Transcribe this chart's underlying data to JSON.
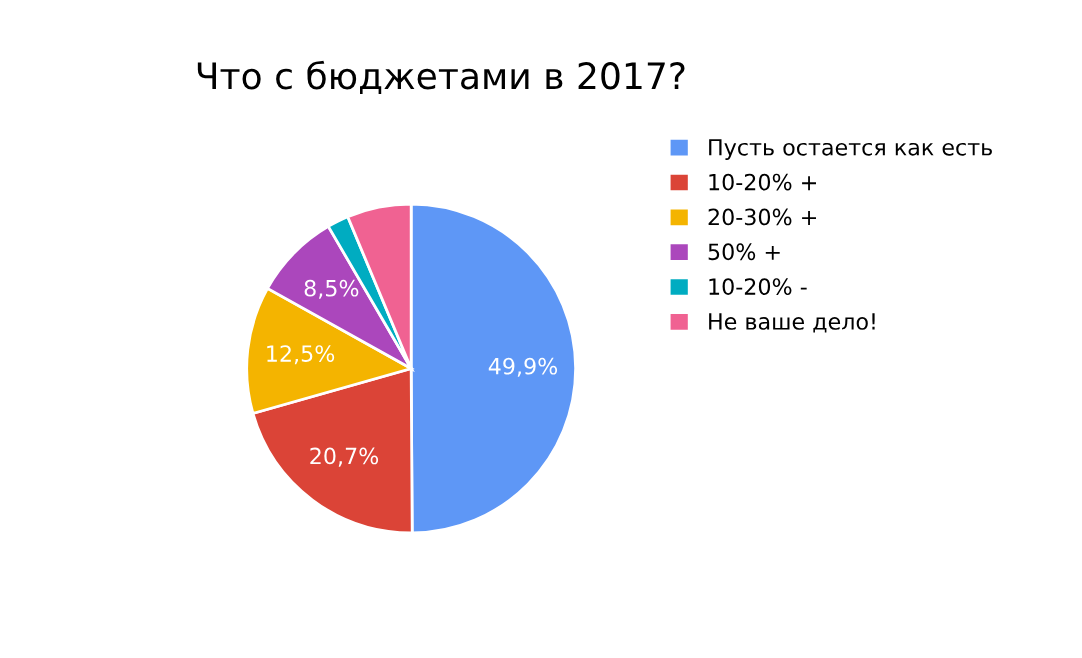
{
  "chart_data": {
    "type": "pie",
    "title": "Что с бюджетами в 2017?",
    "categories": [
      "Пусть остается как есть",
      "10-20% +",
      "20-30% +",
      "50% +",
      "10-20% -",
      "Не ваше дело!"
    ],
    "values": [
      49.9,
      20.7,
      12.5,
      8.5,
      2.1,
      6.3
    ],
    "value_labels": [
      "49,9%",
      "20,7%",
      "12,5%",
      "8,5%",
      null,
      null
    ],
    "colors": [
      "#5e97f6",
      "#db4437",
      "#f4b400",
      "#ab47bc",
      "#00acc1",
      "#f06292"
    ],
    "legend": "right"
  }
}
